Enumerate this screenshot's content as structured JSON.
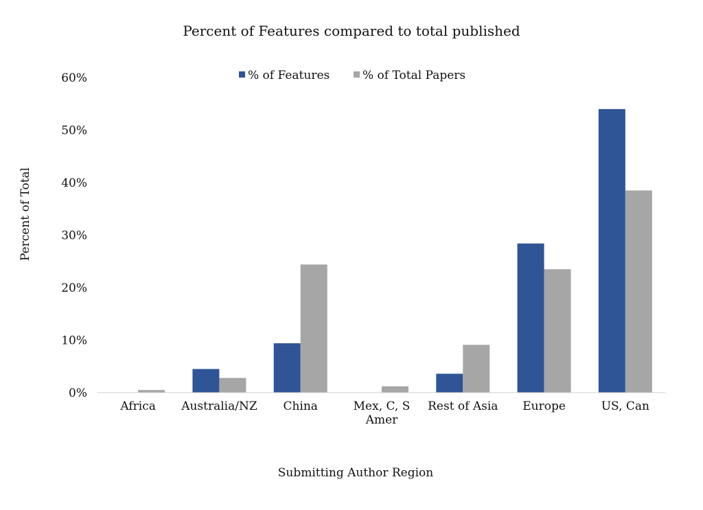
{
  "chart_data": {
    "type": "bar",
    "title": "Percent of Features compared to total published",
    "xlabel": "Submitting Author Region",
    "ylabel": "Percent of Total",
    "categories": [
      "Africa",
      "Australia/NZ",
      "China",
      "Mex, C, S Amer",
      "Rest of Asia",
      "Europe",
      "US, Can"
    ],
    "category_lines": [
      [
        "Africa"
      ],
      [
        "Australia/NZ"
      ],
      [
        "China"
      ],
      [
        "Mex, C, S",
        "Amer"
      ],
      [
        "Rest of Asia"
      ],
      [
        "Europe"
      ],
      [
        "US, Can"
      ]
    ],
    "series": [
      {
        "name": "% of Features",
        "color": "#2f5597",
        "values": [
          0,
          4.5,
          9.4,
          0,
          3.6,
          28.4,
          54.0
        ]
      },
      {
        "name": "% of Total Papers",
        "color": "#a6a6a6",
        "values": [
          0.5,
          2.8,
          24.4,
          1.2,
          9.1,
          23.5,
          38.5
        ]
      }
    ],
    "ylim": [
      0,
      60
    ],
    "yticks": [
      0,
      10,
      20,
      30,
      40,
      50,
      60
    ],
    "ytick_labels": [
      "0%",
      "10%",
      "20%",
      "30%",
      "40%",
      "50%",
      "60%"
    ],
    "grid": false,
    "legend_position": "top"
  }
}
